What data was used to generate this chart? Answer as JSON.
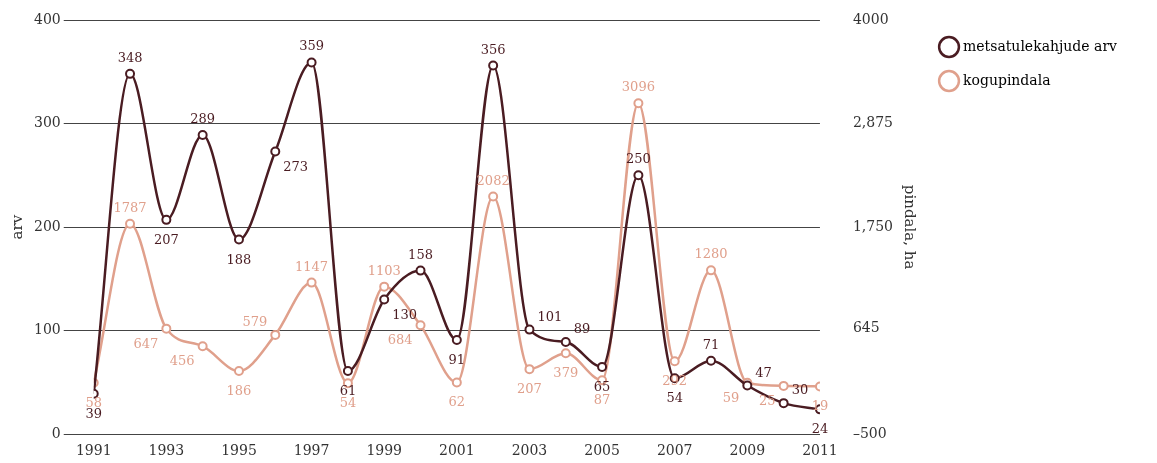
{
  "chart_data": {
    "type": "line",
    "xlabel": null,
    "ylabel": "arv",
    "y2label": "pindala, ha",
    "x": [
      1991,
      1992,
      1993,
      1994,
      1995,
      1996,
      1997,
      1998,
      1999,
      2000,
      2001,
      2002,
      2003,
      2004,
      2005,
      2006,
      2007,
      2008,
      2009,
      2010,
      2011
    ],
    "xlim": [
      1991,
      2011
    ],
    "xticks": [
      1991,
      1993,
      1995,
      1997,
      1999,
      2001,
      2003,
      2005,
      2007,
      2009,
      2011
    ],
    "ylim": [
      0,
      400
    ],
    "yticks": [
      0,
      100,
      200,
      300,
      400
    ],
    "y2lim": [
      -500,
      4000
    ],
    "y2ticks": [
      {
        "value": -500,
        "label": "–500"
      },
      645,
      {
        "value": 1750,
        "label": "1,750"
      },
      {
        "value": 2875,
        "label": "2,875"
      },
      4000
    ],
    "series": [
      {
        "name": "metsatulekahjude arv",
        "color": "#4a1c22",
        "values": [
          39,
          348,
          207,
          289,
          188,
          273,
          359,
          61,
          130,
          158,
          91,
          356,
          101,
          89,
          65,
          250,
          54,
          71,
          47,
          30,
          24
        ]
      },
      {
        "name": "kogupindala",
        "color": "#e0a08c",
        "axis": "y2",
        "values": [
          58,
          1787,
          647,
          456,
          186,
          579,
          1147,
          54,
          1103,
          684,
          62,
          2082,
          207,
          379,
          87,
          3096,
          292,
          1280,
          59,
          25,
          19
        ]
      }
    ],
    "data_labels": true,
    "grid": "y",
    "legend": "top right",
    "marker": "circle",
    "line_style": "solid"
  }
}
